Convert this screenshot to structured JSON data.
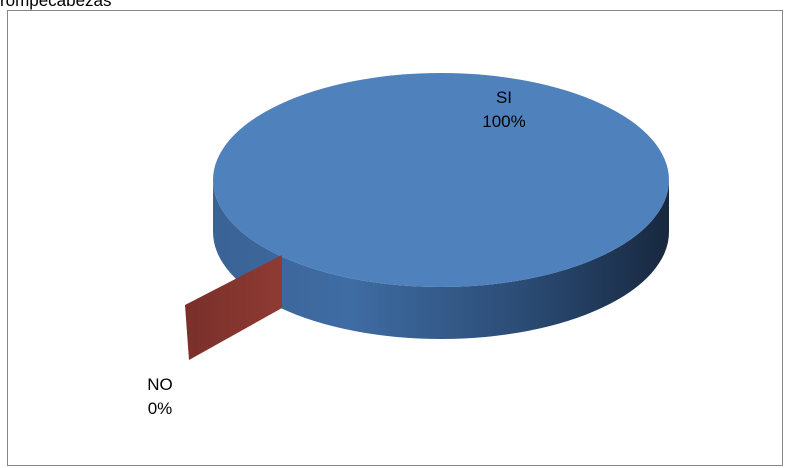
{
  "caption": "rompecabezas",
  "chart_data": {
    "type": "pie",
    "style": "3d-exploded",
    "categories": [
      "SI",
      "NO"
    ],
    "values": [
      100,
      0
    ],
    "labels": [
      {
        "category": "SI",
        "percent": "100%"
      },
      {
        "category": "NO",
        "percent": "0%"
      }
    ],
    "colors": {
      "SI": "#4F81BD",
      "NO": "#8B3A33"
    },
    "legend": "none"
  }
}
